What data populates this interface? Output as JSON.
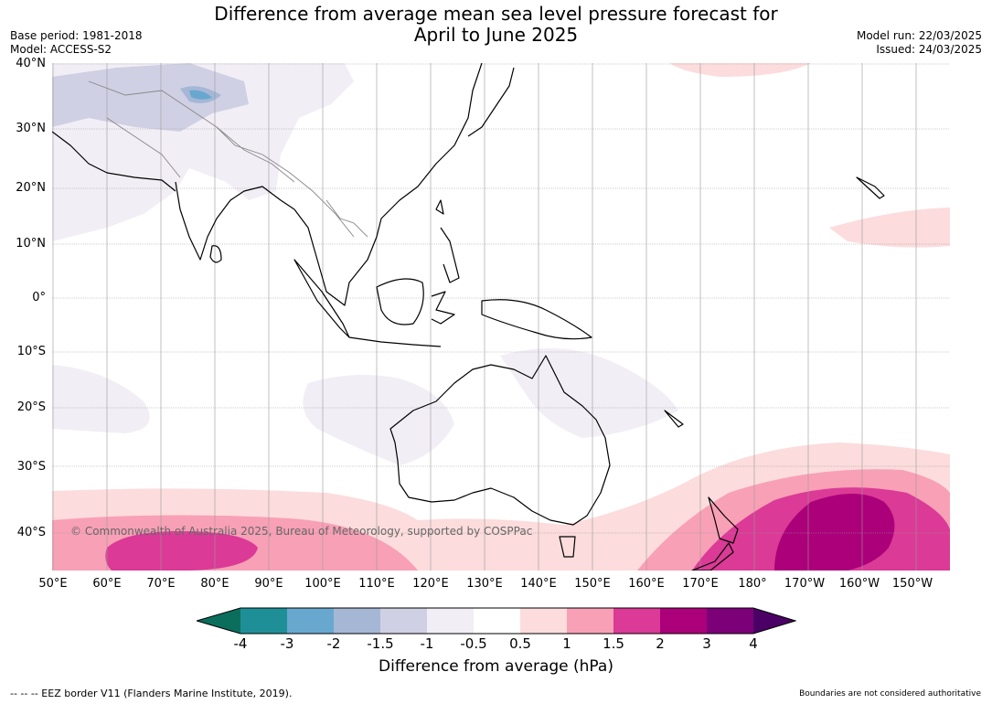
{
  "title_line1": "Difference from average mean sea level pressure forecast for",
  "title_line2": "April to June 2025",
  "base_period": "Base period: 1981-2018",
  "model": "Model: ACCESS-S2",
  "model_run": "Model run: 22/03/2025",
  "issued": "Issued: 24/03/2025",
  "lat_labels": [
    "40°N",
    "30°N",
    "20°N",
    "10°N",
    "0°",
    "10°S",
    "20°S",
    "30°S",
    "40°S"
  ],
  "lon_labels": [
    "50°E",
    "60°E",
    "70°E",
    "80°E",
    "90°E",
    "100°E",
    "110°E",
    "120°E",
    "130°E",
    "140°E",
    "150°E",
    "160°E",
    "170°E",
    "180°",
    "170°W",
    "160°W",
    "150°W"
  ],
  "copyright": "© Commonwealth of Australia 2025, Bureau of Meteorology, supported by COSPPac",
  "colorbar": {
    "title": "Difference from average (hPa)",
    "ticks": [
      "-4",
      "-3",
      "-2",
      "-1.5",
      "-1",
      "-0.5",
      "0.5",
      "1",
      "1.5",
      "2",
      "3",
      "4"
    ],
    "colors": [
      "#0b6e5d",
      "#1e8f97",
      "#68a8cf",
      "#a6b7d6",
      "#d0d0e4",
      "#f2eef6",
      "#ffffff",
      "#fcdcdc",
      "#f8a0b6",
      "#db3a96",
      "#ac007a",
      "#7c0078",
      "#4b0066"
    ]
  },
  "eez_note": "--  --  -- EEZ border V11 (Flanders Marine Institute, 2019).",
  "boundaries_note": "Boundaries are not considered authoritative"
}
